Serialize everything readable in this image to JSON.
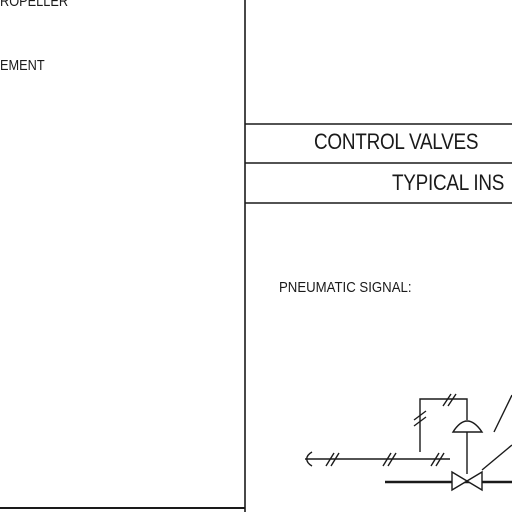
{
  "sheet": {
    "left_fragment_top": "ROPELLER",
    "left_fragment_mid": "EMENT",
    "title_line_1": "CONTROL VALVES",
    "title_line_2": "TYPICAL INS",
    "signal_label": "PNEUMATIC SIGNAL:"
  },
  "colors": {
    "ink": "#1a1a1a",
    "paper": "#ffffff"
  }
}
